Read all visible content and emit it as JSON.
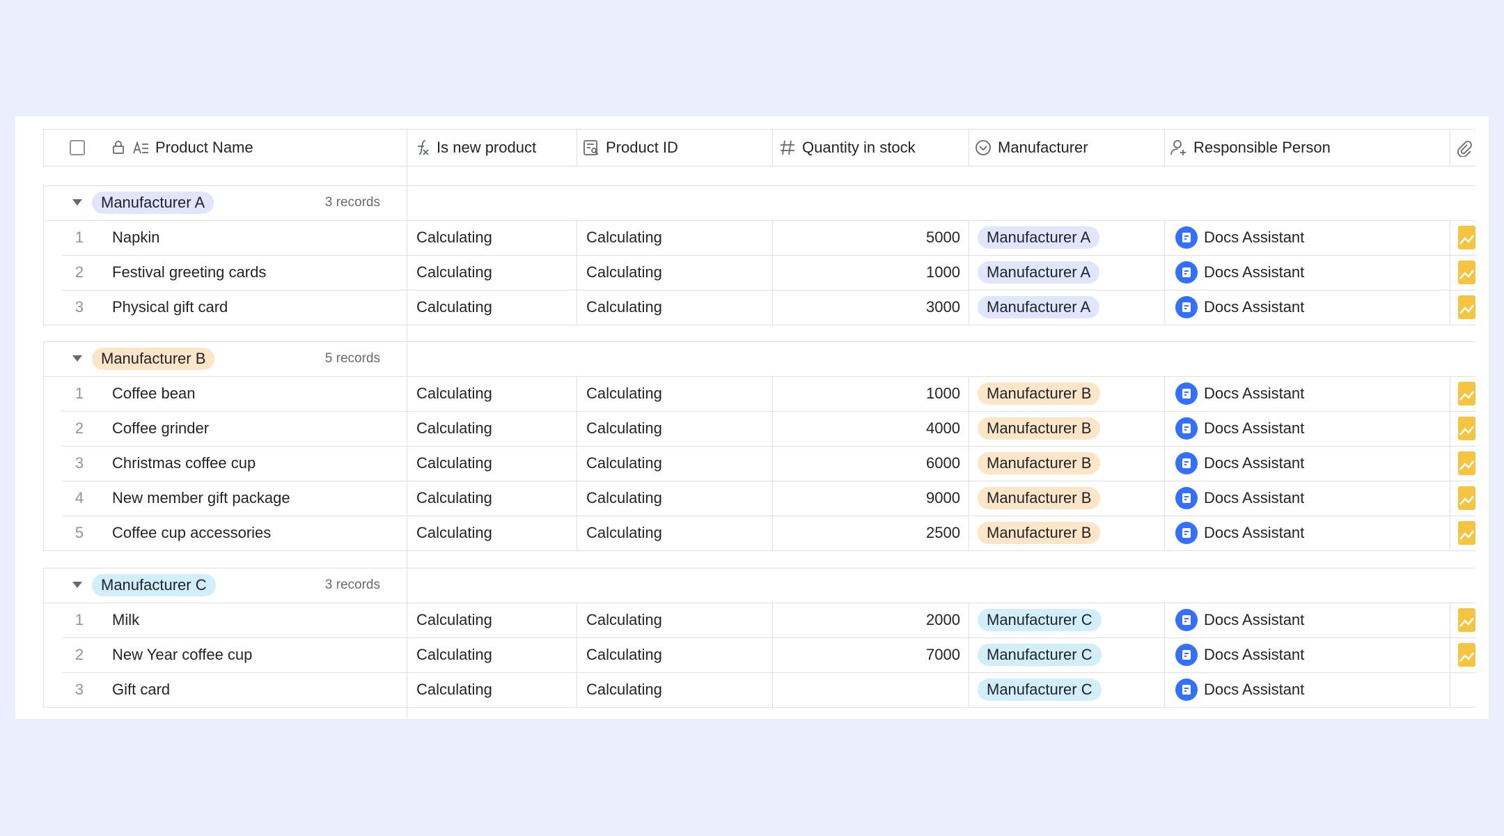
{
  "columns": [
    "Product Name",
    "Is new product",
    "Product ID",
    "Quantity in stock",
    "Manufacturer",
    "Responsible Person"
  ],
  "groups": [
    {
      "name": "Manufacturer A",
      "count": "3 records",
      "color": "#dfe6fd",
      "rows": [
        {
          "index": "1",
          "name": "Napkin",
          "is_new": "Calculating",
          "product_id": "Calculating",
          "quantity": "5000",
          "manufacturer": "Manufacturer A",
          "person": "Docs Assistant",
          "attachment": true
        },
        {
          "index": "2",
          "name": "Festival greeting cards",
          "is_new": "Calculating",
          "product_id": "Calculating",
          "quantity": "1000",
          "manufacturer": "Manufacturer A",
          "person": "Docs Assistant",
          "attachment": true
        },
        {
          "index": "3",
          "name": "Physical gift card",
          "is_new": "Calculating",
          "product_id": "Calculating",
          "quantity": "3000",
          "manufacturer": "Manufacturer A",
          "person": "Docs Assistant",
          "attachment": true
        }
      ]
    },
    {
      "name": "Manufacturer B",
      "count": "5 records",
      "color": "#fde5c8",
      "rows": [
        {
          "index": "1",
          "name": "Coffee bean",
          "is_new": "Calculating",
          "product_id": "Calculating",
          "quantity": "1000",
          "manufacturer": "Manufacturer B",
          "person": "Docs Assistant",
          "attachment": true
        },
        {
          "index": "2",
          "name": "Coffee grinder",
          "is_new": "Calculating",
          "product_id": "Calculating",
          "quantity": "4000",
          "manufacturer": "Manufacturer B",
          "person": "Docs Assistant",
          "attachment": true
        },
        {
          "index": "3",
          "name": "Christmas coffee cup",
          "is_new": "Calculating",
          "product_id": "Calculating",
          "quantity": "6000",
          "manufacturer": "Manufacturer B",
          "person": "Docs Assistant",
          "attachment": true
        },
        {
          "index": "4",
          "name": "New member gift package",
          "is_new": "Calculating",
          "product_id": "Calculating",
          "quantity": "9000",
          "manufacturer": "Manufacturer B",
          "person": "Docs Assistant",
          "attachment": true
        },
        {
          "index": "5",
          "name": "Coffee cup accessories",
          "is_new": "Calculating",
          "product_id": "Calculating",
          "quantity": "2500",
          "manufacturer": "Manufacturer B",
          "person": "Docs Assistant",
          "attachment": true
        }
      ]
    },
    {
      "name": "Manufacturer C",
      "count": "3 records",
      "color": "#d3eefb",
      "rows": [
        {
          "index": "1",
          "name": "Milk",
          "is_new": "Calculating",
          "product_id": "Calculating",
          "quantity": "2000",
          "manufacturer": "Manufacturer C",
          "person": "Docs Assistant",
          "attachment": true
        },
        {
          "index": "2",
          "name": "New Year coffee cup",
          "is_new": "Calculating",
          "product_id": "Calculating",
          "quantity": "7000",
          "manufacturer": "Manufacturer C",
          "person": "Docs Assistant",
          "attachment": true
        },
        {
          "index": "3",
          "name": "Gift card",
          "is_new": "Calculating",
          "product_id": "Calculating",
          "quantity": null,
          "manufacturer": "Manufacturer C",
          "person": "Docs Assistant",
          "attachment": false
        }
      ]
    }
  ]
}
